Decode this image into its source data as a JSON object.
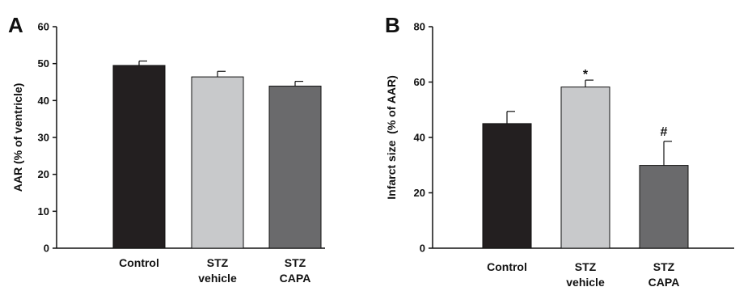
{
  "chart_data": [
    {
      "panel": "A",
      "type": "bar",
      "ylabel": "AAR (% of ventricle)",
      "ylim": [
        0,
        60
      ],
      "yticks": [
        0,
        10,
        20,
        30,
        40,
        50,
        60
      ],
      "categories": [
        [
          "Control"
        ],
        [
          "STZ",
          "vehicle"
        ],
        [
          "STZ",
          "CAPA"
        ]
      ],
      "values": [
        49.5,
        46.4,
        43.9
      ],
      "errors": [
        1.2,
        1.5,
        1.3
      ],
      "colors": [
        "#231f20",
        "#c8c9cb",
        "#6a6a6c"
      ],
      "annotations": [
        "",
        "",
        ""
      ],
      "grid": false
    },
    {
      "panel": "B",
      "type": "bar",
      "ylabel": "Infarct size  (% of AAR)",
      "ylim": [
        0,
        80
      ],
      "yticks": [
        0,
        20,
        40,
        60,
        80
      ],
      "categories": [
        [
          "Control"
        ],
        [
          "STZ",
          "vehicle"
        ],
        [
          "STZ",
          "CAPA"
        ]
      ],
      "values": [
        45.0,
        58.2,
        29.9
      ],
      "errors": [
        4.4,
        2.5,
        8.7
      ],
      "colors": [
        "#231f20",
        "#c8c9cb",
        "#6a6a6c"
      ],
      "annotations": [
        "",
        "*",
        "#"
      ],
      "grid": false
    }
  ]
}
